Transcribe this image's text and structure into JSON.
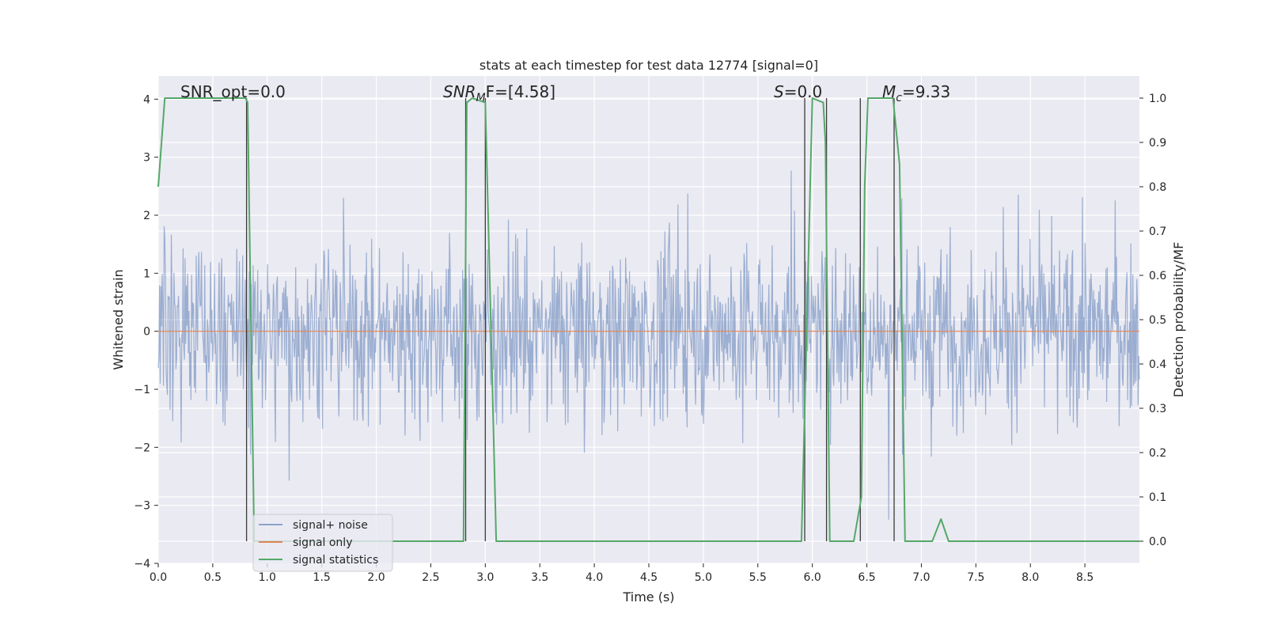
{
  "chart_data": {
    "type": "line",
    "title": "stats at each timestep for test data 12774 [signal=0]",
    "xlabel": "Time (s)",
    "ylabel": "Whitened strain",
    "ylabel_right": "Detection probability/MF",
    "xlim": [
      0,
      9
    ],
    "ylim": [
      -4,
      4.4
    ],
    "ylim_right": [
      -0.05,
      1.05
    ],
    "x_ticks": [
      "0.0",
      "0.5",
      "1.0",
      "1.5",
      "2.0",
      "2.5",
      "3.0",
      "3.5",
      "4.0",
      "4.5",
      "5.0",
      "5.5",
      "6.0",
      "6.5",
      "7.0",
      "7.5",
      "8.0",
      "8.5"
    ],
    "y_ticks": [
      "4",
      "3",
      "2",
      "1",
      "0",
      "−1",
      "−2",
      "−3",
      "−4"
    ],
    "y_ticks_right": [
      "1.0",
      "0.9",
      "0.8",
      "0.7",
      "0.6",
      "0.5",
      "0.4",
      "0.3",
      "0.2",
      "0.1",
      "0.0"
    ],
    "grid": true,
    "legend_placement": "lower-left",
    "colors": {
      "background": "#eaeaf2",
      "grid": "#ffffff",
      "noise": "#4c72b0",
      "signal": "#dd8452",
      "stats": "#55a868",
      "vlines": "#3a3a3a"
    },
    "annotations": {
      "snr_opt": "SNR_opt=0.0",
      "snr_mf_main": "SNR",
      "snr_mf_sub": "M",
      "snr_mf_rest": "F=[4.58]",
      "s_main": "S",
      "s_rest": "=0.0",
      "mc_main": "M",
      "mc_sub": "c",
      "mc_rest": "=9.33"
    },
    "series": [
      {
        "name": "signal+ noise",
        "kind": "noise",
        "duration": 9,
        "n_samples": 1500,
        "typical_range": [
          -1.5,
          1.7
        ],
        "extreme_range": [
          -3.6,
          4.0
        ]
      },
      {
        "name": "signal only",
        "kind": "flat",
        "value": 0
      },
      {
        "name": "signal statistics",
        "kind": "probability",
        "points": [
          [
            0.0,
            0.8
          ],
          [
            0.06,
            1.0
          ],
          [
            0.1,
            1.0
          ],
          [
            0.8,
            1.0
          ],
          [
            0.82,
            0.99
          ],
          [
            0.85,
            0.5
          ],
          [
            0.88,
            0.0
          ],
          [
            2.8,
            0.0
          ],
          [
            2.83,
            0.99
          ],
          [
            2.88,
            1.0
          ],
          [
            3.0,
            0.99
          ],
          [
            3.05,
            0.5
          ],
          [
            3.1,
            0.0
          ],
          [
            4.4,
            0.0
          ],
          [
            5.9,
            0.0
          ],
          [
            5.95,
            0.5
          ],
          [
            6.0,
            1.0
          ],
          [
            6.1,
            0.99
          ],
          [
            6.12,
            0.9
          ],
          [
            6.16,
            0.0
          ],
          [
            6.25,
            0.0
          ],
          [
            6.38,
            0.0
          ],
          [
            6.45,
            0.1
          ],
          [
            6.48,
            0.8
          ],
          [
            6.51,
            1.0
          ],
          [
            6.74,
            1.0
          ],
          [
            6.8,
            0.85
          ],
          [
            6.85,
            0.0
          ],
          [
            7.1,
            0.0
          ],
          [
            7.18,
            0.05
          ],
          [
            7.25,
            0.0
          ],
          [
            9.0,
            0.0
          ]
        ]
      }
    ],
    "vertical_markers": [
      0.81,
      2.82,
      3.0,
      5.93,
      6.13,
      6.44,
      6.75
    ]
  }
}
